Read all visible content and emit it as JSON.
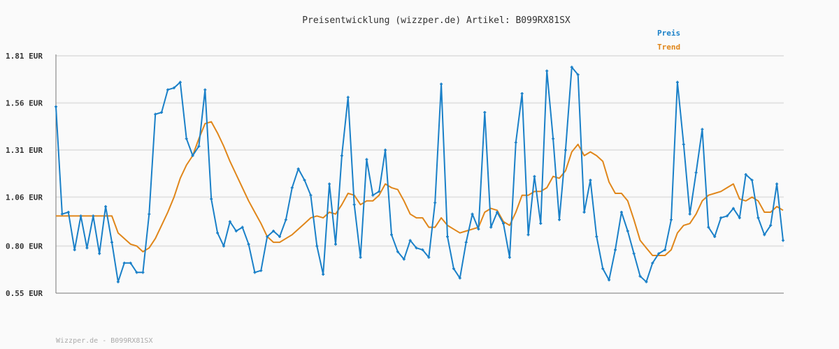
{
  "chart_data": {
    "type": "line",
    "title": "Preisentwicklung (wizzper.de) Artikel: B099RX81SX",
    "xlabel": "",
    "ylabel": "",
    "ylim": [
      0.55,
      1.81
    ],
    "yticks": [
      {
        "value": 0.55,
        "label": "0.55 EUR"
      },
      {
        "value": 0.8,
        "label": "0.80 EUR"
      },
      {
        "value": 1.06,
        "label": "1.06 EUR"
      },
      {
        "value": 1.31,
        "label": "1.31 EUR"
      },
      {
        "value": 1.56,
        "label": "1.56 EUR"
      },
      {
        "value": 1.81,
        "label": "1.81 EUR"
      }
    ],
    "grid": true,
    "legend_position": "top-right",
    "series": [
      {
        "name": "Preis",
        "color": "#1a80c8",
        "markers": true,
        "values": [
          1.54,
          0.97,
          0.98,
          0.78,
          0.96,
          0.79,
          0.96,
          0.76,
          1.01,
          0.82,
          0.61,
          0.71,
          0.71,
          0.66,
          0.66,
          0.97,
          1.5,
          1.51,
          1.63,
          1.64,
          1.67,
          1.37,
          1.28,
          1.33,
          1.63,
          1.05,
          0.87,
          0.8,
          0.93,
          0.88,
          0.9,
          0.81,
          0.66,
          0.67,
          0.85,
          0.88,
          0.85,
          0.94,
          1.11,
          1.21,
          1.15,
          1.07,
          0.8,
          0.65,
          1.13,
          0.81,
          1.28,
          1.59,
          1.02,
          0.74,
          1.26,
          1.07,
          1.09,
          1.31,
          0.86,
          0.77,
          0.73,
          0.83,
          0.79,
          0.78,
          0.74,
          1.03,
          1.66,
          0.85,
          0.68,
          0.63,
          0.82,
          0.97,
          0.89,
          1.51,
          0.9,
          0.98,
          0.92,
          0.74,
          1.35,
          1.61,
          0.86,
          1.17,
          0.92,
          1.73,
          1.37,
          0.94,
          1.31,
          1.75,
          1.71,
          0.98,
          1.15,
          0.85,
          0.68,
          0.62,
          0.78,
          0.98,
          0.88,
          0.76,
          0.64,
          0.61,
          0.71,
          0.76,
          0.78,
          0.94,
          1.67,
          1.34,
          0.97,
          1.19,
          1.42,
          0.9,
          0.85,
          0.95,
          0.96,
          1.0,
          0.95,
          1.18,
          1.15,
          0.95,
          0.86,
          0.91,
          1.13,
          0.83
        ]
      },
      {
        "name": "Trend",
        "color": "#e0861a",
        "markers": false,
        "values": [
          0.96,
          0.96,
          0.96,
          0.96,
          0.96,
          0.96,
          0.96,
          0.96,
          0.96,
          0.96,
          0.87,
          0.84,
          0.81,
          0.8,
          0.77,
          0.79,
          0.84,
          0.91,
          0.98,
          1.06,
          1.16,
          1.23,
          1.28,
          1.37,
          1.45,
          1.46,
          1.4,
          1.33,
          1.25,
          1.18,
          1.11,
          1.04,
          0.98,
          0.92,
          0.85,
          0.82,
          0.82,
          0.84,
          0.86,
          0.89,
          0.92,
          0.95,
          0.96,
          0.95,
          0.98,
          0.97,
          1.02,
          1.08,
          1.07,
          1.02,
          1.04,
          1.04,
          1.07,
          1.13,
          1.11,
          1.1,
          1.04,
          0.97,
          0.95,
          0.95,
          0.9,
          0.9,
          0.95,
          0.91,
          0.89,
          0.87,
          0.88,
          0.89,
          0.9,
          0.98,
          1.0,
          0.99,
          0.93,
          0.91,
          0.98,
          1.07,
          1.07,
          1.09,
          1.09,
          1.11,
          1.17,
          1.16,
          1.2,
          1.3,
          1.34,
          1.28,
          1.3,
          1.28,
          1.25,
          1.14,
          1.08,
          1.08,
          1.04,
          0.94,
          0.83,
          0.79,
          0.75,
          0.75,
          0.75,
          0.78,
          0.87,
          0.91,
          0.92,
          0.97,
          1.04,
          1.07,
          1.08,
          1.09,
          1.11,
          1.13,
          1.05,
          1.04,
          1.06,
          1.04,
          0.98,
          0.98,
          1.01,
          0.99
        ]
      }
    ],
    "footer": "Wizzper.de - B099RX81SX"
  }
}
